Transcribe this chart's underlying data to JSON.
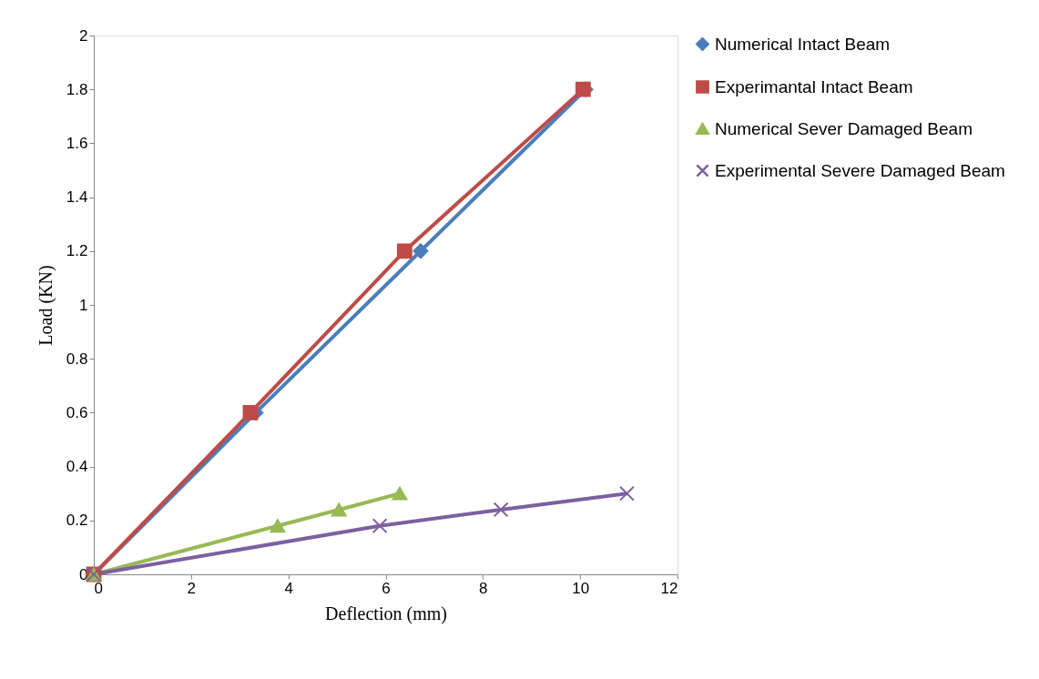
{
  "chart_data": {
    "type": "line",
    "xlabel": "Deflection (mm)",
    "ylabel": "Load (KN)",
    "xlim": [
      0,
      12
    ],
    "xticks": [
      0,
      2,
      4,
      6,
      8,
      10,
      12
    ],
    "ylim": [
      0,
      2
    ],
    "yticks": [
      0,
      0.2,
      0.4,
      0.6,
      0.8,
      1,
      1.2,
      1.4,
      1.6,
      1.8,
      2
    ],
    "grid": false,
    "legend": "right",
    "line_style": "solid",
    "series": [
      {
        "name": "Numerical Intact Beam",
        "color": "#4a7ebb",
        "marker": "diamond",
        "x": [
          0,
          3.33,
          6.72,
          10.11
        ],
        "values": [
          0,
          0.6,
          1.2,
          1.8
        ]
      },
      {
        "name": "Experimantal Intact Beam",
        "color": "#be4b48",
        "marker": "square",
        "x": [
          0,
          3.22,
          6.39,
          10.06
        ],
        "values": [
          0,
          0.6,
          1.2,
          1.8
        ]
      },
      {
        "name": "Numerical Sever Damaged Beam",
        "color": "#98b954",
        "marker": "triangle",
        "x": [
          0,
          3.78,
          5.04,
          6.29
        ],
        "values": [
          0,
          0.18,
          0.24,
          0.3
        ]
      },
      {
        "name": "Experimental Severe Damaged Beam",
        "color": "#7d60a0",
        "marker": "cross",
        "x": [
          0,
          5.88,
          8.37,
          10.96
        ],
        "values": [
          0,
          0.18,
          0.24,
          0.3
        ]
      }
    ]
  }
}
